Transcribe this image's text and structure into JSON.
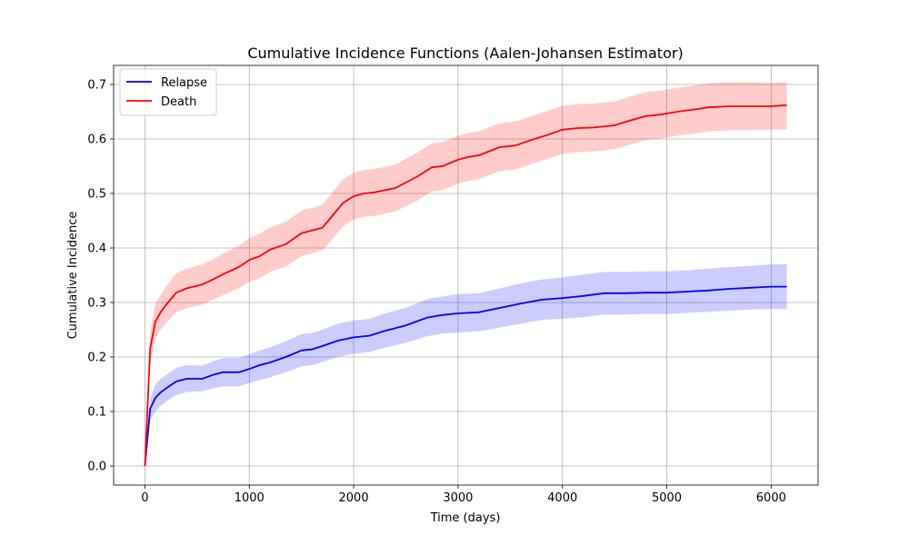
{
  "chart_data": {
    "type": "line",
    "title": "Cumulative Incidence Functions (Aalen-Johansen Estimator)",
    "xlabel": "Time (days)",
    "ylabel": "Cumulative Incidence",
    "xlim": [
      -300,
      6450
    ],
    "ylim": [
      -0.035,
      0.735
    ],
    "xticks": [
      0,
      1000,
      2000,
      3000,
      4000,
      5000,
      6000
    ],
    "yticks": [
      0.0,
      0.1,
      0.2,
      0.3,
      0.4,
      0.5,
      0.6,
      0.7
    ],
    "ytick_labels": [
      "0.0",
      "0.1",
      "0.2",
      "0.3",
      "0.4",
      "0.5",
      "0.6",
      "0.7"
    ],
    "grid": true,
    "legend_position": "top-left",
    "series": [
      {
        "name": "Relapse",
        "color": "#0000ff",
        "band_color": "#0000ff",
        "x": [
          0,
          50,
          100,
          150,
          200,
          300,
          400,
          550,
          650,
          750,
          900,
          1000,
          1100,
          1200,
          1350,
          1500,
          1600,
          1700,
          1850,
          2000,
          2150,
          2300,
          2500,
          2600,
          2700,
          2850,
          3000,
          3200,
          3400,
          3600,
          3800,
          4000,
          4200,
          4400,
          4600,
          4800,
          5000,
          5200,
          5400,
          5600,
          5800,
          6000,
          6150
        ],
        "y": [
          0.0,
          0.105,
          0.125,
          0.135,
          0.142,
          0.155,
          0.16,
          0.16,
          0.167,
          0.172,
          0.172,
          0.178,
          0.185,
          0.19,
          0.2,
          0.212,
          0.214,
          0.22,
          0.23,
          0.236,
          0.239,
          0.248,
          0.258,
          0.265,
          0.272,
          0.277,
          0.28,
          0.282,
          0.29,
          0.298,
          0.305,
          0.308,
          0.312,
          0.317,
          0.317,
          0.318,
          0.318,
          0.32,
          0.322,
          0.325,
          0.327,
          0.329,
          0.329
        ],
        "lower": [
          0.0,
          0.085,
          0.1,
          0.11,
          0.118,
          0.13,
          0.136,
          0.137,
          0.142,
          0.146,
          0.146,
          0.152,
          0.158,
          0.163,
          0.172,
          0.183,
          0.185,
          0.191,
          0.2,
          0.206,
          0.209,
          0.217,
          0.226,
          0.232,
          0.238,
          0.243,
          0.245,
          0.247,
          0.254,
          0.261,
          0.268,
          0.27,
          0.273,
          0.278,
          0.278,
          0.279,
          0.279,
          0.281,
          0.283,
          0.285,
          0.287,
          0.288,
          0.288
        ],
        "upper": [
          0.0,
          0.125,
          0.15,
          0.16,
          0.166,
          0.18,
          0.185,
          0.184,
          0.192,
          0.198,
          0.198,
          0.205,
          0.212,
          0.218,
          0.229,
          0.242,
          0.244,
          0.25,
          0.261,
          0.267,
          0.27,
          0.28,
          0.29,
          0.298,
          0.306,
          0.311,
          0.315,
          0.317,
          0.326,
          0.335,
          0.342,
          0.346,
          0.351,
          0.356,
          0.356,
          0.357,
          0.357,
          0.359,
          0.362,
          0.365,
          0.367,
          0.37,
          0.37
        ]
      },
      {
        "name": "Death",
        "color": "#ff0000",
        "band_color": "#ff0000",
        "x": [
          0,
          50,
          100,
          150,
          200,
          300,
          400,
          550,
          650,
          750,
          900,
          1000,
          1100,
          1200,
          1350,
          1500,
          1600,
          1700,
          1800,
          1900,
          2000,
          2100,
          2200,
          2400,
          2600,
          2750,
          2850,
          3000,
          3100,
          3200,
          3400,
          3550,
          3700,
          3850,
          4000,
          4150,
          4300,
          4500,
          4650,
          4800,
          4950,
          5100,
          5300,
          5400,
          5600,
          5800,
          6000,
          6150
        ],
        "y": [
          0.0,
          0.215,
          0.265,
          0.282,
          0.295,
          0.318,
          0.326,
          0.333,
          0.342,
          0.352,
          0.365,
          0.378,
          0.385,
          0.397,
          0.407,
          0.427,
          0.432,
          0.437,
          0.46,
          0.483,
          0.495,
          0.5,
          0.502,
          0.51,
          0.53,
          0.548,
          0.55,
          0.562,
          0.567,
          0.57,
          0.585,
          0.588,
          0.598,
          0.607,
          0.617,
          0.62,
          0.621,
          0.625,
          0.634,
          0.642,
          0.645,
          0.65,
          0.655,
          0.658,
          0.66,
          0.66,
          0.66,
          0.662
        ],
        "lower": [
          0.0,
          0.185,
          0.233,
          0.25,
          0.262,
          0.282,
          0.29,
          0.296,
          0.305,
          0.314,
          0.326,
          0.338,
          0.344,
          0.356,
          0.366,
          0.385,
          0.39,
          0.395,
          0.417,
          0.44,
          0.452,
          0.457,
          0.459,
          0.467,
          0.486,
          0.504,
          0.506,
          0.518,
          0.523,
          0.526,
          0.541,
          0.544,
          0.554,
          0.563,
          0.573,
          0.576,
          0.577,
          0.581,
          0.59,
          0.598,
          0.601,
          0.606,
          0.611,
          0.614,
          0.616,
          0.616,
          0.617,
          0.618
        ],
        "upper": [
          0.0,
          0.245,
          0.297,
          0.314,
          0.328,
          0.354,
          0.362,
          0.37,
          0.379,
          0.39,
          0.404,
          0.418,
          0.426,
          0.438,
          0.448,
          0.469,
          0.474,
          0.479,
          0.503,
          0.526,
          0.538,
          0.543,
          0.545,
          0.553,
          0.574,
          0.592,
          0.594,
          0.606,
          0.611,
          0.614,
          0.629,
          0.632,
          0.642,
          0.651,
          0.661,
          0.664,
          0.665,
          0.669,
          0.678,
          0.686,
          0.689,
          0.694,
          0.699,
          0.702,
          0.704,
          0.704,
          0.703,
          0.704
        ]
      }
    ]
  }
}
